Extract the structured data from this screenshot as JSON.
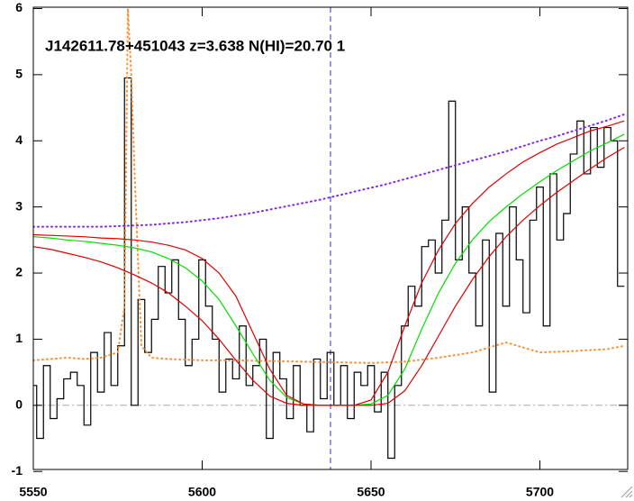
{
  "chart_data": {
    "type": "line",
    "annotation": "J142611.78+451043 z=3.638 N(HI)=20.70 1",
    "xlim": [
      5550,
      5726
    ],
    "ylim": [
      -0.97,
      6.02
    ],
    "xticks": [
      5550,
      5600,
      5650,
      5700
    ],
    "yticks": [
      -1,
      0,
      1,
      2,
      3,
      4,
      5,
      6
    ],
    "vlines": [
      {
        "value": 5638,
        "color": "#3030c0"
      }
    ],
    "hlines": [
      {
        "value": 0,
        "color": "#aaaaaa"
      }
    ],
    "series": [
      {
        "color": "#000000",
        "style": "step",
        "x": [
          5550,
          5552,
          5554,
          5556,
          5558,
          5560,
          5562,
          5564,
          5566,
          5568,
          5570,
          5572,
          5574,
          5576,
          5578,
          5580,
          5582,
          5584,
          5586,
          5588,
          5590,
          5592,
          5594,
          5596,
          5598,
          5600,
          5602,
          5604,
          5606,
          5608,
          5610,
          5612,
          5614,
          5616,
          5618,
          5620,
          5622,
          5624,
          5626,
          5628,
          5630,
          5632,
          5634,
          5636,
          5638,
          5640,
          5642,
          5644,
          5646,
          5648,
          5650,
          5652,
          5654,
          5656,
          5658,
          5660,
          5662,
          5664,
          5666,
          5668,
          5670,
          5672,
          5674,
          5676,
          5678,
          5680,
          5682,
          5684,
          5686,
          5688,
          5690,
          5692,
          5694,
          5696,
          5698,
          5700,
          5702,
          5704,
          5706,
          5708,
          5710,
          5712,
          5714,
          5716,
          5718,
          5720,
          5722,
          5724
        ],
        "values": [
          0.3,
          -0.5,
          0.6,
          -0.2,
          0.1,
          0.4,
          0.5,
          0.3,
          -0.3,
          0.8,
          0.2,
          1.1,
          0.3,
          0.9,
          4.95,
          0.0,
          1.6,
          0.8,
          1.3,
          2.1,
          1.7,
          2.2,
          1.3,
          0.6,
          1.0,
          2.2,
          1.5,
          1.0,
          0.2,
          0.7,
          0.4,
          1.2,
          0.3,
          0.6,
          1.0,
          -0.5,
          0.8,
          0.4,
          -0.2,
          0.6,
          0.0,
          -0.4,
          0.7,
          0.1,
          0.8,
          0.0,
          0.6,
          -0.2,
          0.5,
          0.3,
          0.6,
          -0.1,
          0.5,
          -0.8,
          0.3,
          1.2,
          1.8,
          1.5,
          2.4,
          2.5,
          2.0,
          2.8,
          4.6,
          2.2,
          3.0,
          2.0,
          1.2,
          2.5,
          0.2,
          2.6,
          1.5,
          3.0,
          2.2,
          1.4,
          2.8,
          3.3,
          1.2,
          3.5,
          2.5,
          2.9,
          3.8,
          4.3,
          3.5,
          4.2,
          3.6,
          4.2,
          4.0,
          1.8
        ]
      },
      {
        "color": "#ff8c30",
        "style": "dotted",
        "x": [
          5550,
          5555,
          5560,
          5565,
          5570,
          5575,
          5577,
          5578,
          5579,
          5580,
          5582,
          5585,
          5590,
          5600,
          5610,
          5620,
          5630,
          5640,
          5650,
          5660,
          5670,
          5680,
          5690,
          5700,
          5710,
          5720,
          5725
        ],
        "values": [
          0.68,
          0.7,
          0.72,
          0.7,
          0.72,
          0.8,
          1.5,
          6.0,
          5.0,
          3.5,
          0.9,
          0.72,
          0.7,
          0.68,
          0.68,
          0.67,
          0.66,
          0.65,
          0.64,
          0.66,
          0.72,
          0.8,
          0.95,
          0.8,
          0.82,
          0.85,
          0.9
        ]
      },
      {
        "color": "#8020ff",
        "style": "dotted",
        "x": [
          5550,
          5555,
          5560,
          5565,
          5570,
          5575,
          5580,
          5585,
          5590,
          5595,
          5600,
          5605,
          5610,
          5615,
          5620,
          5625,
          5630,
          5635,
          5640,
          5645,
          5650,
          5655,
          5660,
          5665,
          5670,
          5675,
          5680,
          5685,
          5690,
          5695,
          5700,
          5705,
          5710,
          5715,
          5720,
          5725
        ],
        "values": [
          2.7,
          2.7,
          2.7,
          2.7,
          2.7,
          2.71,
          2.72,
          2.73,
          2.75,
          2.77,
          2.8,
          2.83,
          2.87,
          2.91,
          2.96,
          3.01,
          3.06,
          3.11,
          3.17,
          3.23,
          3.29,
          3.35,
          3.42,
          3.49,
          3.56,
          3.63,
          3.7,
          3.77,
          3.84,
          3.92,
          4.0,
          4.07,
          4.15,
          4.23,
          4.31,
          4.4
        ]
      },
      {
        "color": "#00e000",
        "style": "line",
        "x": [
          5550,
          5555,
          5560,
          5565,
          5570,
          5575,
          5580,
          5585,
          5590,
          5595,
          5600,
          5605,
          5610,
          5615,
          5620,
          5625,
          5630,
          5635,
          5640,
          5645,
          5650,
          5655,
          5660,
          5665,
          5670,
          5675,
          5680,
          5685,
          5690,
          5695,
          5700,
          5705,
          5710,
          5715,
          5720,
          5725
        ],
        "values": [
          2.55,
          2.53,
          2.5,
          2.48,
          2.45,
          2.42,
          2.38,
          2.32,
          2.22,
          2.08,
          1.88,
          1.6,
          1.2,
          0.78,
          0.38,
          0.12,
          0.02,
          0,
          0,
          0,
          0.02,
          0.15,
          0.55,
          1.15,
          1.7,
          2.15,
          2.5,
          2.78,
          3.0,
          3.2,
          3.38,
          3.55,
          3.7,
          3.85,
          3.97,
          4.1
        ]
      },
      {
        "color": "#e00000",
        "style": "line",
        "x": [
          5550,
          5555,
          5560,
          5565,
          5570,
          5575,
          5580,
          5585,
          5590,
          5595,
          5600,
          5605,
          5610,
          5615,
          5620,
          5625,
          5630,
          5635,
          5640,
          5645,
          5650,
          5655,
          5660,
          5665,
          5670,
          5675,
          5680,
          5685,
          5690,
          5695,
          5700,
          5705,
          5710,
          5715,
          5720,
          5725
        ],
        "values": [
          2.58,
          2.57,
          2.56,
          2.55,
          2.53,
          2.52,
          2.5,
          2.47,
          2.42,
          2.35,
          2.22,
          2.0,
          1.65,
          1.1,
          0.55,
          0.15,
          0.02,
          0,
          0,
          0,
          0.08,
          0.5,
          1.2,
          1.85,
          2.35,
          2.75,
          3.05,
          3.3,
          3.5,
          3.68,
          3.82,
          3.95,
          4.05,
          4.15,
          4.22,
          4.3
        ]
      },
      {
        "color": "#e00000",
        "style": "line",
        "x": [
          5550,
          5555,
          5560,
          5565,
          5570,
          5575,
          5580,
          5585,
          5590,
          5595,
          5600,
          5605,
          5610,
          5615,
          5620,
          5625,
          5630,
          5635,
          5640,
          5645,
          5650,
          5655,
          5660,
          5665,
          5670,
          5675,
          5680,
          5685,
          5690,
          5695,
          5700,
          5705,
          5710,
          5715,
          5720,
          5725
        ],
        "values": [
          2.4,
          2.36,
          2.3,
          2.24,
          2.17,
          2.08,
          1.97,
          1.85,
          1.7,
          1.5,
          1.28,
          1.0,
          0.68,
          0.38,
          0.14,
          0.03,
          0,
          0,
          0,
          0,
          0,
          0.03,
          0.22,
          0.6,
          1.05,
          1.5,
          1.9,
          2.25,
          2.55,
          2.8,
          3.02,
          3.22,
          3.4,
          3.58,
          3.75,
          3.9
        ]
      }
    ]
  }
}
